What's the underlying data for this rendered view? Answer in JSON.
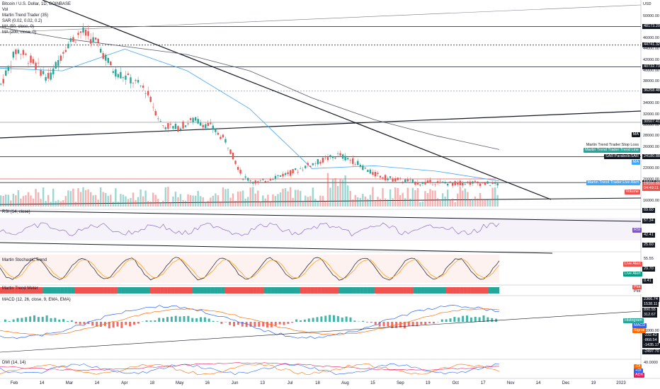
{
  "header": {
    "symbol": "Bitcoin / U.S. Dollar, 1D, COINBASE",
    "indicators": [
      "Vol",
      "Martin Trend Trader (35)",
      "SAR (0.02, 0.02, 0.2)",
      "MA (50, close, 0)",
      "MA (200, close, 0)"
    ]
  },
  "currency": "USD",
  "price_axis": {
    "ticks": [
      "50000.00",
      "48000.00",
      "46000.00",
      "44000.00",
      "42000.00",
      "40000.00",
      "38000.00",
      "36000.00",
      "34000.00",
      "32000.00",
      "30000.00",
      "28000.00",
      "26000.00",
      "24000.00",
      "22000.00",
      "20000.00",
      "18000.00",
      "16000.00"
    ],
    "markers": [
      {
        "value": "48173.20",
        "style": "dark"
      },
      {
        "value": "44741.32",
        "style": "dark"
      },
      {
        "value": "40732.73",
        "style": "dark"
      },
      {
        "value": "36258.48",
        "style": "dark"
      },
      {
        "value": "30507.41",
        "style": "dark"
      },
      {
        "value": "24180.88",
        "style": "dark"
      },
      {
        "value": "19417.09",
        "style": "dark"
      },
      {
        "value": "19100.66",
        "style": "red"
      },
      {
        "value": "04:49:11",
        "style": "red"
      }
    ],
    "tags": [
      {
        "text": "MA",
        "bg": "#131722",
        "fg": "#ffffff"
      },
      {
        "text": "Martin Trend Trader:Stop Loss",
        "bg": "#ffffff",
        "fg": "#131722"
      },
      {
        "text": "Martin Trend Trader:Trend Line",
        "bg": "#26a69a",
        "fg": "#ffffff"
      },
      {
        "text": "SAR:ParabolicSAR",
        "bg": "#131722",
        "fg": "#ffffff"
      },
      {
        "text": "MA",
        "bg": "#42a5f5",
        "fg": "#ffffff"
      },
      {
        "text": "Martin Trend Trader:Live Alert",
        "bg": "#42a5f5",
        "fg": "#ffffff"
      },
      {
        "text": "Volume",
        "bg": "#ef5350",
        "fg": "#ffffff"
      }
    ]
  },
  "rsi": {
    "title": "RSI (14, close)",
    "markers": [
      "69.60",
      "57.34",
      "42.41",
      "25.60"
    ],
    "tag": "RSI"
  },
  "stoch": {
    "title": "Martin Stochastic Trend",
    "markers": [
      "55.55",
      "29.70",
      "0.41"
    ],
    "tags": [
      "Live Alert",
      "Live Alert"
    ]
  },
  "momentum": {
    "title": "Martin Trend Meter",
    "tags": [
      "Plot",
      "Plot"
    ]
  },
  "macd": {
    "title": "MACD (12, 26, close, 9, EMA, EMA)",
    "markers": [
      "2366.74",
      "1538.11",
      "890.55",
      "312.67",
      "-1000.00",
      "-232.43",
      "-868.54",
      "-1435.17",
      "-2497.70"
    ],
    "tags": [
      "Histogram",
      "MACD",
      "Signal"
    ]
  },
  "dmi": {
    "title": "DMI (14, 14)",
    "markers": [
      "40.0000"
    ],
    "tags": [
      "+DI",
      "-DI",
      "ADX"
    ]
  },
  "time_axis": [
    "Feb",
    "14",
    "Mar",
    "14",
    "Apr",
    "18",
    "May",
    "16",
    "Jun",
    "13",
    "Jul",
    "18",
    "Aug",
    "15",
    "Sep",
    "19",
    "Oct",
    "17",
    "Nov",
    "14",
    "Dec",
    "19",
    "2023"
  ],
  "chart_data": {
    "type": "line",
    "title": "Bitcoin / U.S. Dollar, 1D, COINBASE",
    "xlabel": "",
    "ylabel": "USD",
    "ylim": [
      15000,
      52000
    ],
    "x": [
      "Feb",
      "Mar",
      "Apr",
      "May",
      "Jun",
      "Jul",
      "Aug",
      "Sep",
      "Oct"
    ],
    "series": [
      {
        "name": "MA (50, close, 0)",
        "values": [
          40500,
          40000,
          44000,
          40000,
          33000,
          22000,
          22500,
          21500,
          19700
        ]
      },
      {
        "name": "MA (200, close, 0)",
        "values": [
          48000,
          46000,
          44500,
          43000,
          40000,
          35000,
          31000,
          28000,
          25500
        ]
      }
    ],
    "price_path": [
      37500,
      44000,
      41500,
      38500,
      44500,
      47300,
      45000,
      40000,
      38500,
      36500,
      30000,
      29500,
      31000,
      29800,
      27000,
      20500,
      19300,
      20500,
      21200,
      22500,
      23500,
      24500,
      23200,
      21200,
      20200,
      19800,
      19300,
      19500,
      19200,
      19400,
      19200,
      19100
    ],
    "grid": false,
    "legend": "top-left"
  }
}
